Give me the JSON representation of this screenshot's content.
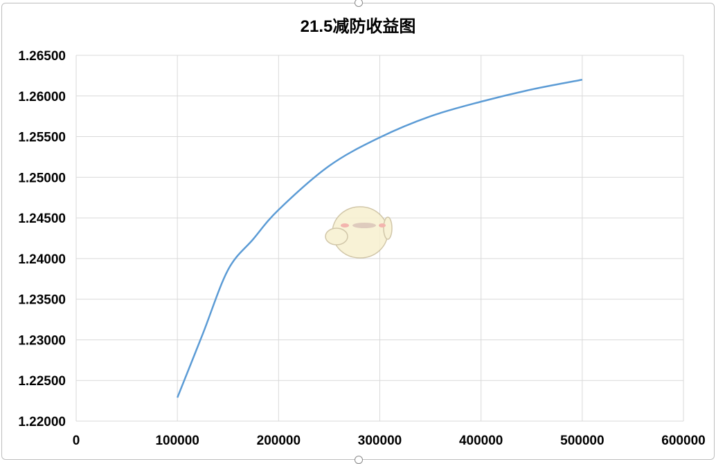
{
  "chart_data": {
    "type": "line",
    "title": "21.5减防收益图",
    "xlabel": "",
    "ylabel": "",
    "xlim": [
      0,
      600000
    ],
    "ylim": [
      1.22,
      1.265
    ],
    "x_ticks": [
      "0",
      "100000",
      "200000",
      "300000",
      "400000",
      "500000",
      "600000"
    ],
    "y_ticks": [
      "1.22000",
      "1.22500",
      "1.23000",
      "1.23500",
      "1.24000",
      "1.24500",
      "1.25000",
      "1.25500",
      "1.26000",
      "1.26500"
    ],
    "grid": true,
    "legend": "none",
    "series": [
      {
        "color": "#5b9bd5",
        "x": [
          100000,
          125000,
          150000,
          175000,
          200000,
          250000,
          300000,
          350000,
          400000,
          450000,
          500000
        ],
        "y": [
          1.2229,
          1.2307,
          1.2386,
          1.2424,
          1.246,
          1.2514,
          1.2549,
          1.2575,
          1.2593,
          1.2608,
          1.262
        ]
      }
    ]
  }
}
